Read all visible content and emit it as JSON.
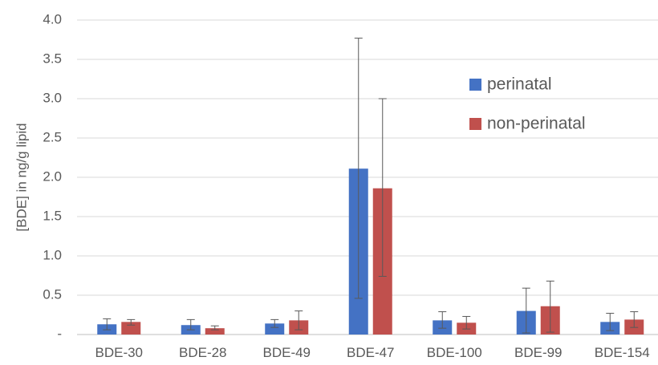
{
  "chart_data": {
    "type": "bar",
    "title": "",
    "xlabel": "",
    "ylabel": "[BDE] in ng/g lipid",
    "ylim": [
      0,
      4.0
    ],
    "yticks": [
      0,
      0.5,
      1.0,
      1.5,
      2.0,
      2.5,
      3.0,
      3.5,
      4.0
    ],
    "ytick_labels": [
      "-",
      "0.5",
      "1.0",
      "1.5",
      "2.0",
      "2.5",
      "3.0",
      "3.5",
      "4.0"
    ],
    "grid": true,
    "legend_position": "top-right",
    "categories": [
      "BDE-30",
      "BDE-28",
      "BDE-49",
      "BDE-47",
      "BDE-100",
      "BDE-99",
      "BDE-154"
    ],
    "series": [
      {
        "name": "perinatal",
        "color": "#4472c4",
        "values": [
          0.13,
          0.12,
          0.14,
          2.11,
          0.18,
          0.3,
          0.16
        ],
        "error_low": [
          0.06,
          0.06,
          0.09,
          0.46,
          0.08,
          0.02,
          0.05
        ],
        "error_high": [
          0.2,
          0.19,
          0.19,
          3.77,
          0.29,
          0.59,
          0.27
        ]
      },
      {
        "name": "non-perinatal",
        "color": "#c0504d",
        "values": [
          0.16,
          0.08,
          0.18,
          1.86,
          0.15,
          0.36,
          0.19
        ],
        "error_low": [
          0.12,
          0.06,
          0.06,
          0.74,
          0.07,
          0.03,
          0.09
        ],
        "error_high": [
          0.19,
          0.11,
          0.3,
          3.0,
          0.23,
          0.68,
          0.29
        ]
      }
    ]
  }
}
